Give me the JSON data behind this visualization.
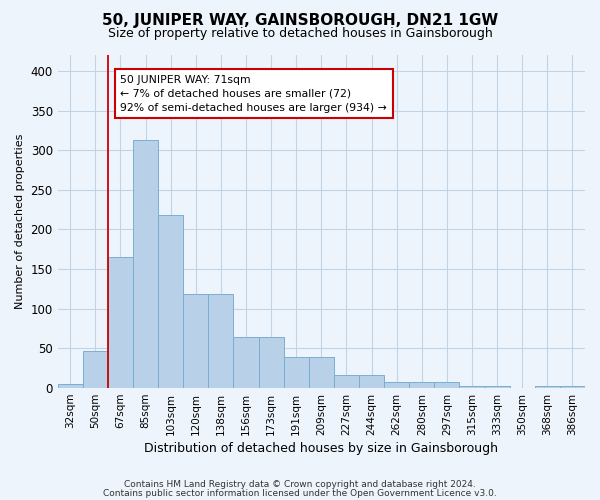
{
  "title": "50, JUNIPER WAY, GAINSBOROUGH, DN21 1GW",
  "subtitle": "Size of property relative to detached houses in Gainsborough",
  "xlabel": "Distribution of detached houses by size in Gainsborough",
  "ylabel": "Number of detached properties",
  "footer1": "Contains HM Land Registry data © Crown copyright and database right 2024.",
  "footer2": "Contains public sector information licensed under the Open Government Licence v3.0.",
  "categories": [
    "32sqm",
    "50sqm",
    "67sqm",
    "85sqm",
    "103sqm",
    "120sqm",
    "138sqm",
    "156sqm",
    "173sqm",
    "191sqm",
    "209sqm",
    "227sqm",
    "244sqm",
    "262sqm",
    "280sqm",
    "297sqm",
    "315sqm",
    "333sqm",
    "350sqm",
    "368sqm",
    "386sqm"
  ],
  "values": [
    5,
    47,
    165,
    313,
    218,
    118,
    118,
    65,
    65,
    39,
    39,
    16,
    16,
    8,
    8,
    8,
    3,
    3,
    0,
    3,
    3
  ],
  "bar_color": "#b8d0e8",
  "bar_edge_color": "#7aaed0",
  "grid_color": "#c0d4e8",
  "bg_color": "#eef4fb",
  "red_line_x": 1.5,
  "annotation_line1": "50 JUNIPER WAY: 71sqm",
  "annotation_line2": "← 7% of detached houses are smaller (72)",
  "annotation_line3": "92% of semi-detached houses are larger (934) →",
  "annotation_box_color": "#ffffff",
  "annotation_box_edge": "#cc0000",
  "ylim": [
    0,
    420
  ],
  "yticks": [
    0,
    50,
    100,
    150,
    200,
    250,
    300,
    350,
    400
  ],
  "title_fontsize": 11,
  "subtitle_fontsize": 9,
  "ylabel_fontsize": 8,
  "xlabel_fontsize": 9
}
